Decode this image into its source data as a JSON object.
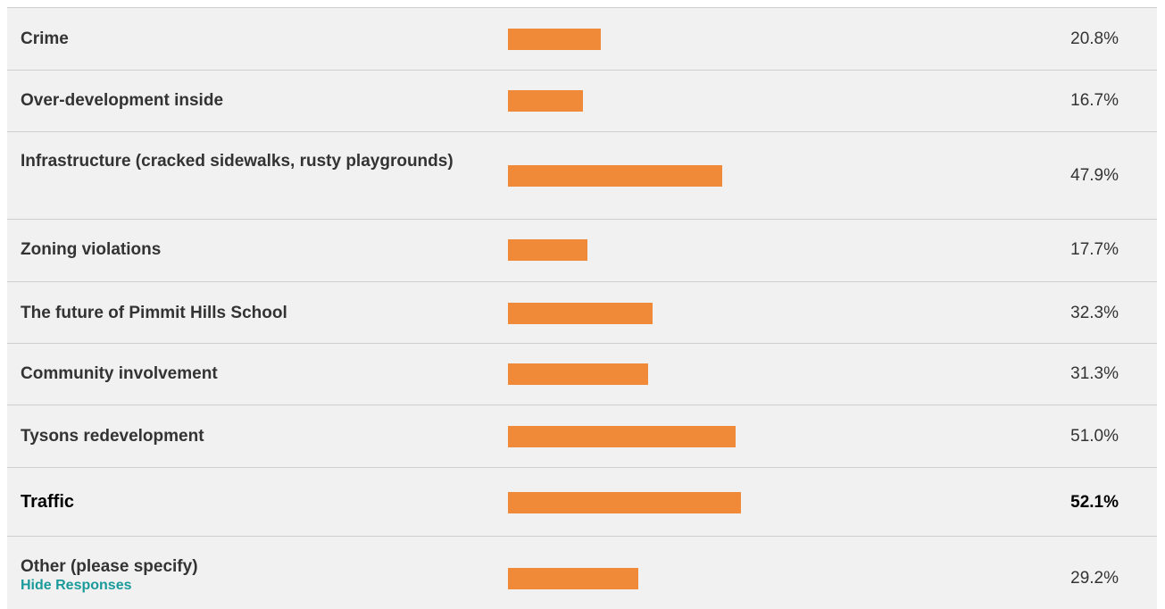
{
  "chart_data": {
    "type": "bar",
    "orientation": "horizontal",
    "categories": [
      "Crime",
      "Over-development inside",
      "Infrastructure (cracked sidewalks, rusty playgrounds)",
      "Zoning violations",
      "The future of Pimmit Hills School",
      "Community involvement",
      "Tysons redevelopment",
      "Traffic",
      "Other (please specify)"
    ],
    "values": [
      20.8,
      16.7,
      47.9,
      17.7,
      32.3,
      31.3,
      51.0,
      52.1,
      29.2
    ],
    "value_labels": [
      "20.8%",
      "16.7%",
      "47.9%",
      "17.7%",
      "32.3%",
      "31.3%",
      "51.0%",
      "52.1%",
      "29.2%"
    ],
    "highlighted": "Traffic",
    "bar_color": "#f08a38",
    "link_color": "#1a9a9a"
  },
  "rows": [
    {
      "label": "Crime",
      "pct": "20.8%"
    },
    {
      "label": "Over-development inside",
      "pct": "16.7%"
    },
    {
      "label": "Infrastructure (cracked sidewalks, rusty playgrounds)",
      "pct": "47.9%"
    },
    {
      "label": "Zoning violations",
      "pct": "17.7%"
    },
    {
      "label": "The future of Pimmit Hills School",
      "pct": "32.3%"
    },
    {
      "label": "Community involvement",
      "pct": "31.3%"
    },
    {
      "label": "Tysons redevelopment",
      "pct": "51.0%"
    },
    {
      "label": "Traffic",
      "pct": "52.1%"
    },
    {
      "label": "Other (please specify)",
      "pct": "29.2%",
      "link": "Hide Responses"
    }
  ]
}
